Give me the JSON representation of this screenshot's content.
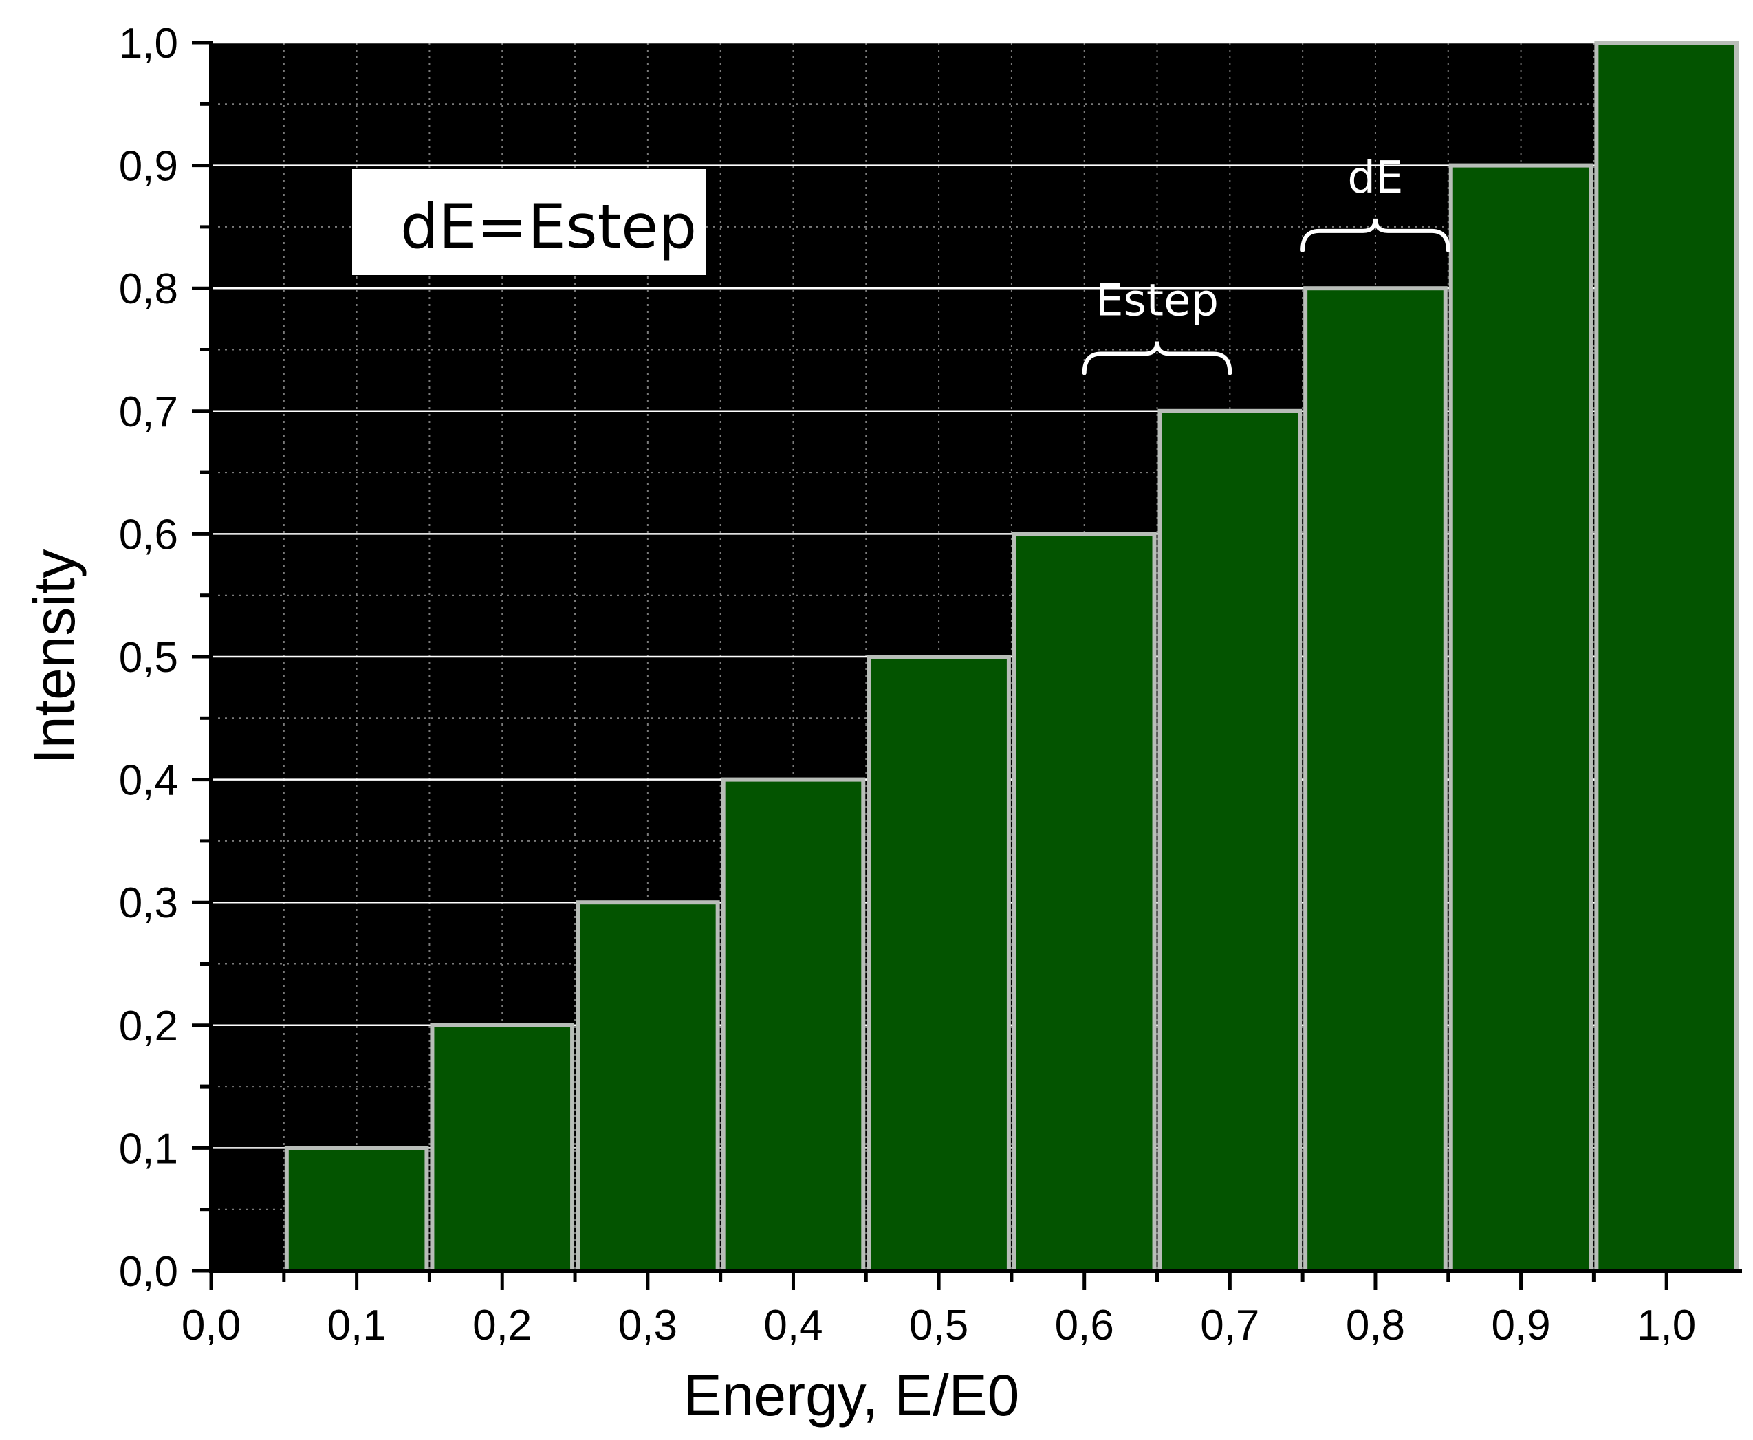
{
  "chart_data": {
    "type": "bar",
    "x": [
      0.1,
      0.2,
      0.3,
      0.4,
      0.5,
      0.6,
      0.7,
      0.8,
      0.9,
      1.0
    ],
    "values": [
      0.1,
      0.2,
      0.3,
      0.4,
      0.5,
      0.6,
      0.7,
      0.8,
      0.9,
      1.0
    ],
    "bar_width": 0.1,
    "xlabel": "Energy, E/E0",
    "ylabel": "Intensity",
    "xlim": [
      0.0,
      1.05
    ],
    "ylim": [
      0.0,
      1.0
    ],
    "x_ticks": [
      "0,0",
      "0,1",
      "0,2",
      "0,3",
      "0,4",
      "0,5",
      "0,6",
      "0,7",
      "0,8",
      "0,9",
      "1,0"
    ],
    "y_ticks": [
      "0,0",
      "0,1",
      "0,2",
      "0,3",
      "0,4",
      "0,5",
      "0,6",
      "0,7",
      "0,8",
      "0,9",
      "1,0"
    ],
    "grid": true,
    "legend_box_text": "dE=Estep",
    "annotations": [
      {
        "text": "Estep",
        "x_from": 0.6,
        "x_to": 0.7,
        "y": 0.75
      },
      {
        "text": "dE",
        "x_from": 0.75,
        "x_to": 0.85,
        "y": 0.85
      }
    ]
  },
  "colors": {
    "plot_background": "#000000",
    "bar_fill": "#035400",
    "bar_edge": "#b8bdb8",
    "gridline": "#ffffff",
    "axis": "#000000",
    "annotation": "#ffffff"
  }
}
